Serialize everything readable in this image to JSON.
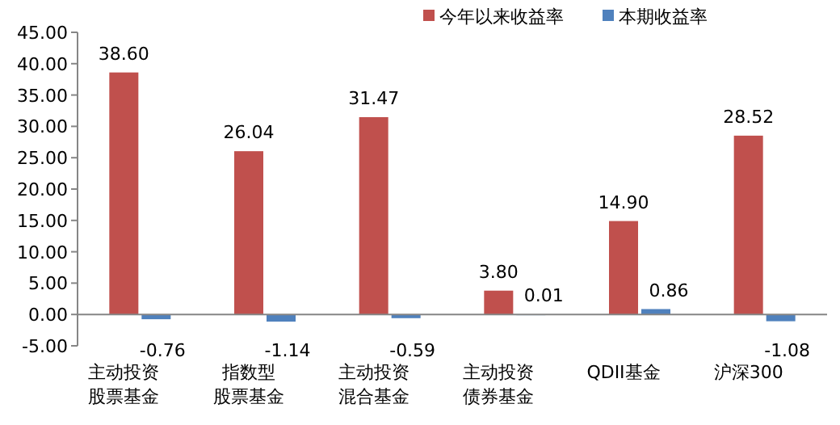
{
  "chart_data": {
    "type": "bar",
    "categories": [
      "主动投资股票基金",
      "指数型股票基金",
      "主动投资混合基金",
      "主动投资债券基金",
      "QDII基金",
      "沪深300"
    ],
    "series": [
      {
        "name": "今年以来收益率",
        "color": "#c0504d",
        "values": [
          38.6,
          26.04,
          31.47,
          3.8,
          14.9,
          28.52
        ],
        "value_labels": [
          "38.60",
          "26.04",
          "31.47",
          "3.80",
          "14.90",
          "28.52"
        ]
      },
      {
        "name": "本期收益率",
        "color": "#4f81bd",
        "values": [
          -0.76,
          -1.14,
          -0.59,
          0.01,
          0.86,
          -1.08
        ],
        "value_labels": [
          "-0.76",
          "-1.14",
          "-0.59",
          "0.01",
          "0.86",
          "-1.08"
        ]
      }
    ],
    "ylim": [
      -5,
      45
    ],
    "yticks": [
      {
        "value": -5,
        "label": "-5.00"
      },
      {
        "value": 0,
        "label": "0.00"
      },
      {
        "value": 5,
        "label": "5.00"
      },
      {
        "value": 10,
        "label": "10.00"
      },
      {
        "value": 15,
        "label": "15.00"
      },
      {
        "value": 20,
        "label": "20.00"
      },
      {
        "value": 25,
        "label": "25.00"
      },
      {
        "value": 30,
        "label": "30.00"
      },
      {
        "value": 35,
        "label": "35.00"
      },
      {
        "value": 40,
        "label": "40.00"
      },
      {
        "value": 45,
        "label": "45.00"
      }
    ],
    "legend": "top right"
  }
}
